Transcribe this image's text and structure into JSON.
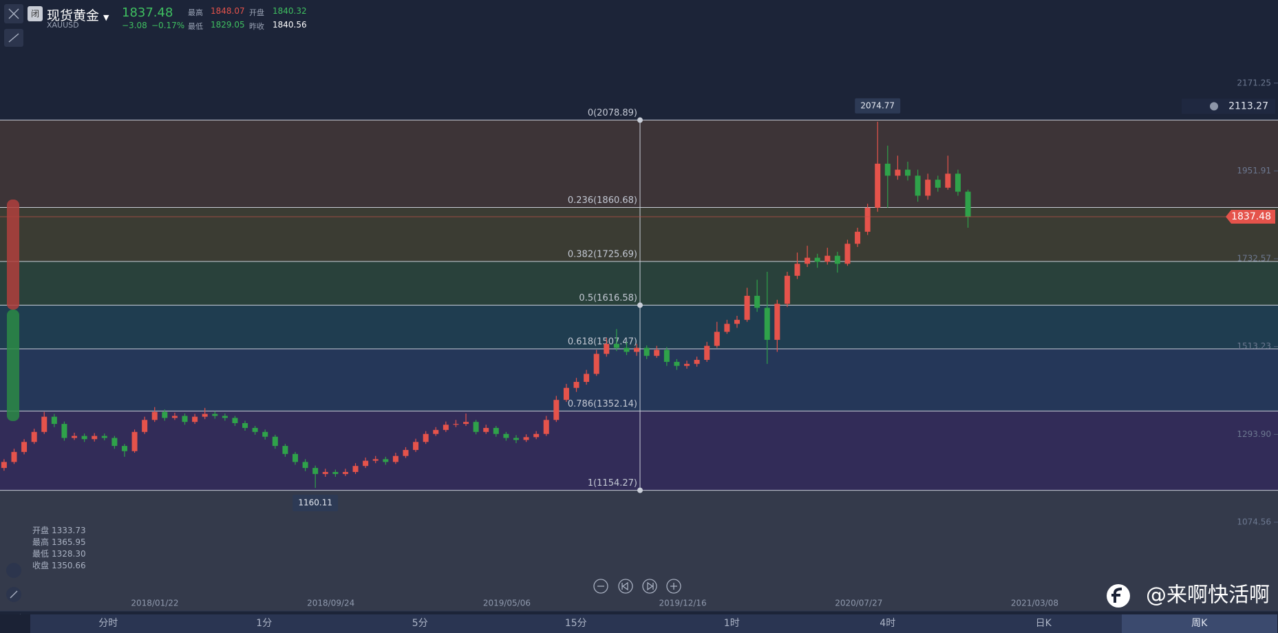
{
  "header": {
    "badge": "闭",
    "name": "现货黄金",
    "code": "XAUUSD",
    "price": "1837.48",
    "change": "−3.08",
    "change_pct": "−0.17%",
    "high_label": "最高",
    "high": "1848.07",
    "open_label": "开盘",
    "open": "1840.32",
    "low_label": "最低",
    "low": "1829.05",
    "prev_label": "昨收",
    "prev": "1840.56"
  },
  "info": [
    [
      "开盘",
      "1333.73"
    ],
    [
      "最高",
      "1365.95"
    ],
    [
      "最低",
      "1328.30"
    ],
    [
      "收盘",
      "1350.66"
    ]
  ],
  "timeframes": [
    "分时",
    "1分",
    "5分",
    "15分",
    "1时",
    "4时",
    "日K",
    "周K"
  ],
  "watermark": "@来啊快活啊",
  "chart_data": {
    "type": "candlestick",
    "up_color": "#e5534b",
    "down_color": "#2fa24a",
    "ylim": [
      852.8,
      2378.8
    ],
    "yticks": [
      2171.25,
      1951.91,
      1732.57,
      1513.23,
      {
        "value": 1293.9,
        "label": "1293.90"
      },
      1074.56
    ],
    "xticks": [
      "2018/01/22",
      "2018/09/24",
      "2019/05/06",
      "2019/12/16",
      "2020/07/27",
      "2021/03/08"
    ],
    "last_price": 1837.48,
    "alert_price": 2113.27,
    "fib_levels": [
      {
        "value": 2078.89,
        "label": "0(2078.89)"
      },
      {
        "value": 1860.68,
        "label": "0.236(1860.68)"
      },
      {
        "value": 1725.69,
        "label": "0.382(1725.69)"
      },
      {
        "value": 1616.58,
        "label": "0.5(1616.58)"
      },
      {
        "value": 1507.47,
        "label": "0.618(1507.47)"
      },
      {
        "value": 1352.14,
        "label": "0.786(1352.14)"
      },
      {
        "value": 1154.27,
        "label": "1(1154.27)"
      }
    ],
    "fib_colors": [
      "#3d3437",
      "#3b3c33",
      "#29413b",
      "#1f3d50",
      "#253759",
      "#322c58"
    ],
    "ohlc": [
      [
        1210,
        1232,
        1203,
        1225
      ],
      [
        1225,
        1258,
        1220,
        1250
      ],
      [
        1250,
        1282,
        1244,
        1275
      ],
      [
        1275,
        1308,
        1270,
        1300
      ],
      [
        1300,
        1350,
        1295,
        1338
      ],
      [
        1338,
        1345,
        1312,
        1320
      ],
      [
        1320,
        1326,
        1278,
        1285
      ],
      [
        1285,
        1298,
        1280,
        1290
      ],
      [
        1290,
        1296,
        1275,
        1282
      ],
      [
        1282,
        1297,
        1276,
        1290
      ],
      [
        1290,
        1296,
        1279,
        1285
      ],
      [
        1285,
        1290,
        1258,
        1265
      ],
      [
        1265,
        1270,
        1238,
        1252
      ],
      [
        1252,
        1306,
        1248,
        1300
      ],
      [
        1300,
        1338,
        1295,
        1330
      ],
      [
        1330,
        1362,
        1325,
        1350
      ],
      [
        1350,
        1356,
        1328,
        1335
      ],
      [
        1335,
        1348,
        1330,
        1340
      ],
      [
        1340,
        1346,
        1318,
        1325
      ],
      [
        1325,
        1345,
        1320,
        1338
      ],
      [
        1338,
        1360,
        1332,
        1345
      ],
      [
        1345,
        1352,
        1333,
        1340
      ],
      [
        1340,
        1346,
        1328,
        1335
      ],
      [
        1335,
        1340,
        1315,
        1322
      ],
      [
        1322,
        1328,
        1303,
        1310
      ],
      [
        1310,
        1315,
        1293,
        1300
      ],
      [
        1300,
        1306,
        1281,
        1288
      ],
      [
        1288,
        1293,
        1258,
        1265
      ],
      [
        1265,
        1270,
        1238,
        1245
      ],
      [
        1245,
        1250,
        1218,
        1225
      ],
      [
        1225,
        1232,
        1202,
        1210
      ],
      [
        1210,
        1216,
        1160.11,
        1195
      ],
      [
        1195,
        1208,
        1188,
        1200
      ],
      [
        1200,
        1206,
        1188,
        1195
      ],
      [
        1195,
        1208,
        1190,
        1200
      ],
      [
        1200,
        1222,
        1195,
        1215
      ],
      [
        1215,
        1236,
        1210,
        1228
      ],
      [
        1228,
        1240,
        1222,
        1232
      ],
      [
        1232,
        1238,
        1218,
        1225
      ],
      [
        1225,
        1248,
        1220,
        1240
      ],
      [
        1240,
        1262,
        1235,
        1255
      ],
      [
        1255,
        1283,
        1250,
        1275
      ],
      [
        1275,
        1302,
        1270,
        1295
      ],
      [
        1295,
        1312,
        1290,
        1305
      ],
      [
        1305,
        1326,
        1300,
        1318
      ],
      [
        1318,
        1330,
        1312,
        1320
      ],
      [
        1320,
        1346,
        1315,
        1325
      ],
      [
        1325,
        1330,
        1294,
        1300
      ],
      [
        1300,
        1318,
        1295,
        1310
      ],
      [
        1310,
        1315,
        1288,
        1295
      ],
      [
        1295,
        1300,
        1278,
        1285
      ],
      [
        1285,
        1292,
        1272,
        1280
      ],
      [
        1280,
        1294,
        1275,
        1287
      ],
      [
        1287,
        1302,
        1282,
        1295
      ],
      [
        1295,
        1340,
        1290,
        1330
      ],
      [
        1330,
        1390,
        1325,
        1380
      ],
      [
        1380,
        1420,
        1375,
        1410
      ],
      [
        1410,
        1435,
        1400,
        1425
      ],
      [
        1425,
        1455,
        1418,
        1445
      ],
      [
        1445,
        1505,
        1440,
        1495
      ],
      [
        1495,
        1535,
        1488,
        1520
      ],
      [
        1520,
        1557,
        1502,
        1510
      ],
      [
        1510,
        1525,
        1492,
        1500
      ],
      [
        1500,
        1520,
        1490,
        1510
      ],
      [
        1510,
        1516,
        1482,
        1490
      ],
      [
        1490,
        1515,
        1485,
        1505
      ],
      [
        1505,
        1512,
        1465,
        1475
      ],
      [
        1475,
        1482,
        1455,
        1465
      ],
      [
        1465,
        1478,
        1458,
        1470
      ],
      [
        1470,
        1488,
        1463,
        1480
      ],
      [
        1480,
        1525,
        1475,
        1515
      ],
      [
        1515,
        1575,
        1510,
        1550
      ],
      [
        1550,
        1580,
        1545,
        1570
      ],
      [
        1570,
        1590,
        1560,
        1580
      ],
      [
        1580,
        1660,
        1575,
        1640
      ],
      [
        1640,
        1680,
        1600,
        1610
      ],
      [
        1610,
        1700,
        1470,
        1530
      ],
      [
        1530,
        1630,
        1500,
        1620
      ],
      [
        1620,
        1700,
        1612,
        1690
      ],
      [
        1690,
        1748,
        1682,
        1720
      ],
      [
        1720,
        1765,
        1712,
        1735
      ],
      [
        1735,
        1745,
        1710,
        1725
      ],
      [
        1725,
        1760,
        1718,
        1740
      ],
      [
        1740,
        1750,
        1698,
        1720
      ],
      [
        1720,
        1780,
        1715,
        1770
      ],
      [
        1770,
        1810,
        1762,
        1800
      ],
      [
        1800,
        1870,
        1792,
        1860
      ],
      [
        1860,
        2074.77,
        1850,
        1970
      ],
      [
        1970,
        2015,
        1860,
        1940
      ],
      [
        1940,
        1990,
        1930,
        1955
      ],
      [
        1955,
        1975,
        1928,
        1940
      ],
      [
        1940,
        1955,
        1875,
        1890
      ],
      [
        1890,
        1945,
        1880,
        1930
      ],
      [
        1930,
        1940,
        1900,
        1910
      ],
      [
        1910,
        1990,
        1905,
        1945
      ],
      [
        1945,
        1955,
        1890,
        1900
      ],
      [
        1900,
        1905,
        1810,
        1837.48
      ]
    ]
  }
}
